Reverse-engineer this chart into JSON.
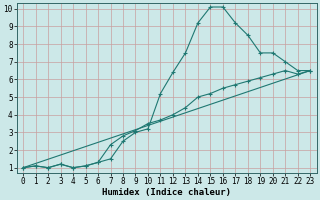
{
  "line1_x": [
    0,
    1,
    2,
    3,
    4,
    5,
    6,
    7,
    8,
    9,
    10,
    11,
    12,
    13,
    14,
    15,
    16,
    17,
    18,
    19,
    20,
    21,
    22,
    23
  ],
  "line1_y": [
    1.0,
    1.1,
    1.0,
    1.2,
    1.0,
    1.1,
    1.3,
    1.5,
    2.5,
    3.0,
    3.2,
    5.2,
    6.4,
    7.5,
    9.2,
    10.1,
    10.1,
    9.2,
    8.5,
    7.5,
    7.5,
    7.0,
    6.5,
    6.5
  ],
  "line2_x": [
    0,
    1,
    2,
    3,
    4,
    5,
    6,
    7,
    8,
    9,
    10,
    11,
    12,
    13,
    14,
    15,
    16,
    17,
    18,
    19,
    20,
    21,
    22,
    23
  ],
  "line2_y": [
    1.0,
    1.1,
    1.0,
    1.2,
    1.0,
    1.1,
    1.3,
    2.3,
    2.8,
    3.1,
    3.5,
    3.7,
    4.0,
    4.4,
    5.0,
    5.2,
    5.5,
    5.7,
    5.9,
    6.1,
    6.3,
    6.5,
    6.3,
    6.5
  ],
  "line3_x": [
    0,
    23
  ],
  "line3_y": [
    1.0,
    6.5
  ],
  "color": "#1f7872",
  "bg_color": "#cce8e8",
  "grid_color": "#c8a0a0",
  "xlabel": "Humidex (Indice chaleur)",
  "xlim": [
    0,
    23
  ],
  "ylim": [
    1,
    10
  ],
  "xticks": [
    0,
    1,
    2,
    3,
    4,
    5,
    6,
    7,
    8,
    9,
    10,
    11,
    12,
    13,
    14,
    15,
    16,
    17,
    18,
    19,
    20,
    21,
    22,
    23
  ],
  "yticks": [
    1,
    2,
    3,
    4,
    5,
    6,
    7,
    8,
    9,
    10
  ],
  "xlabel_fontsize": 6.5,
  "tick_fontsize": 5.5
}
